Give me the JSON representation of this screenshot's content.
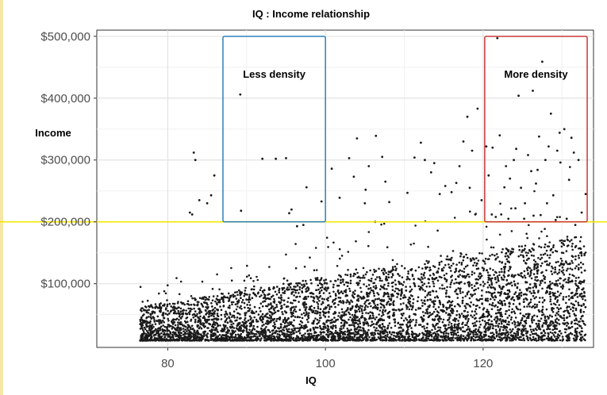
{
  "chart_data": {
    "type": "scatter",
    "title": "IQ : Income relationship",
    "xlabel": "IQ",
    "ylabel": "Income",
    "xlim": [
      71,
      134
    ],
    "ylim": [
      -3000,
      510000
    ],
    "x_ticks": [
      80,
      100,
      120
    ],
    "x_tick_labels": [
      "80",
      "100",
      "120"
    ],
    "y_ticks": [
      100000,
      200000,
      300000,
      400000,
      500000
    ],
    "y_tick_labels": [
      "$100,000",
      "$200,000",
      "$300,000",
      "$400,000",
      "$500,000"
    ],
    "grid": true,
    "point_color": "#1a1a1a",
    "points": [
      [
        83.3,
        312000
      ],
      [
        83.5,
        300000
      ],
      [
        84.0,
        235000
      ],
      [
        82.8,
        215000
      ],
      [
        83.1,
        212000
      ],
      [
        85.0,
        230000
      ],
      [
        85.5,
        243000
      ],
      [
        85.9,
        275000
      ],
      [
        89.2,
        406000
      ],
      [
        89.3,
        218000
      ],
      [
        92.0,
        302000
      ],
      [
        93.7,
        302000
      ],
      [
        95.0,
        303000
      ],
      [
        95.4,
        214000
      ],
      [
        95.7,
        220000
      ],
      [
        97.6,
        256000
      ],
      [
        96.4,
        193000
      ],
      [
        99.5,
        233000
      ],
      [
        97.2,
        195000
      ],
      [
        100.8,
        286000
      ],
      [
        101.8,
        239000
      ],
      [
        103.0,
        303000
      ],
      [
        103.6,
        273000
      ],
      [
        105.1,
        252000
      ],
      [
        105.5,
        290000
      ],
      [
        105.0,
        230000
      ],
      [
        104.0,
        335000
      ],
      [
        106.3,
        200000
      ],
      [
        106.4,
        339000
      ],
      [
        107.6,
        265000
      ],
      [
        107.2,
        305000
      ],
      [
        108.1,
        232000
      ],
      [
        110.4,
        247000
      ],
      [
        111.3,
        304000
      ],
      [
        112.1,
        328000
      ],
      [
        112.6,
        300000
      ],
      [
        113.4,
        280000
      ],
      [
        113.8,
        295000
      ],
      [
        114.5,
        245000
      ],
      [
        115.2,
        258000
      ],
      [
        116.0,
        248000
      ],
      [
        116.6,
        263000
      ],
      [
        117.0,
        290000
      ],
      [
        117.5,
        330000
      ],
      [
        118.0,
        370000
      ],
      [
        118.6,
        315000
      ],
      [
        119.3,
        383000
      ],
      [
        119.8,
        235000
      ],
      [
        120.4,
        322000
      ],
      [
        118.3,
        255000
      ],
      [
        119.0,
        212000
      ],
      [
        121.8,
        497000
      ],
      [
        124.5,
        404000
      ],
      [
        126.3,
        412000
      ],
      [
        127.5,
        459000
      ],
      [
        128.6,
        375000
      ],
      [
        121.2,
        320000
      ],
      [
        122.1,
        340000
      ],
      [
        122.9,
        290000
      ],
      [
        123.4,
        270000
      ],
      [
        123.9,
        300000
      ],
      [
        124.8,
        255000
      ],
      [
        125.3,
        230000
      ],
      [
        125.7,
        308000
      ],
      [
        126.1,
        282000
      ],
      [
        126.7,
        262000
      ],
      [
        127.1,
        338000
      ],
      [
        127.9,
        300000
      ],
      [
        128.3,
        322000
      ],
      [
        128.9,
        243000
      ],
      [
        129.4,
        315000
      ],
      [
        129.8,
        296000
      ],
      [
        130.3,
        350000
      ],
      [
        130.9,
        268000
      ],
      [
        131.5,
        312000
      ],
      [
        132.1,
        300000
      ],
      [
        132.5,
        215000
      ],
      [
        133.0,
        245000
      ],
      [
        121.1,
        212000
      ],
      [
        121.6,
        208000
      ],
      [
        122.3,
        212000
      ],
      [
        123.2,
        205000
      ],
      [
        124.1,
        222000
      ],
      [
        125.2,
        205000
      ],
      [
        126.4,
        210000
      ],
      [
        127.3,
        211000
      ],
      [
        128.1,
        230000
      ],
      [
        129.2,
        203000
      ],
      [
        130.6,
        205000
      ],
      [
        131.7,
        195000
      ],
      [
        120.7,
        275000
      ],
      [
        122.7,
        256000
      ],
      [
        124.2,
        318000
      ],
      [
        126.9,
        284000
      ],
      [
        129.7,
        344000
      ],
      [
        131.2,
        336000
      ]
    ],
    "annotations": [
      {
        "label": "Less density",
        "color": "#1f78b4",
        "x_range": [
          87,
          100
        ],
        "y_range": [
          200000,
          500000
        ]
      },
      {
        "label": "More density",
        "color": "#c62828",
        "x_range": [
          120.2,
          133.2
        ],
        "y_range": [
          200000,
          500000
        ]
      }
    ],
    "reference_line": {
      "y": 200000,
      "color": "#f5e600"
    }
  }
}
